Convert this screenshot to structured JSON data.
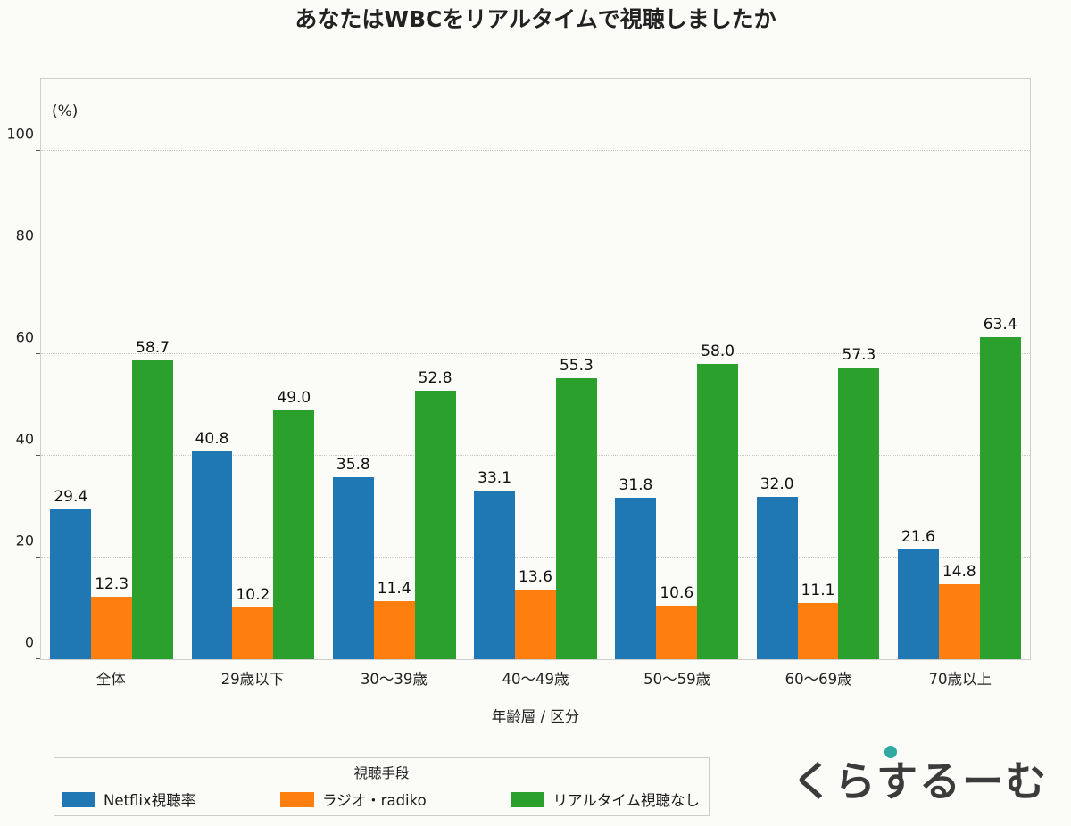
{
  "title": "あなたはWBCをリアルタイムで視聴しましたか",
  "chart_data": {
    "type": "bar",
    "categories": [
      "全体",
      "29歳以下",
      "30〜39歳",
      "40〜49歳",
      "50〜59歳",
      "60〜69歳",
      "70歳以上"
    ],
    "series": [
      {
        "name": "Netflix視聴率",
        "color": "#1f77b4",
        "values": [
          29.4,
          40.8,
          35.8,
          33.1,
          31.8,
          32.0,
          21.6
        ]
      },
      {
        "name": "ラジオ・radiko",
        "color": "#ff7f0e",
        "values": [
          12.3,
          10.2,
          11.4,
          13.6,
          10.6,
          11.1,
          14.8
        ]
      },
      {
        "name": "リアルタイム視聴なし",
        "color": "#2ca02c",
        "values": [
          58.7,
          49.0,
          52.8,
          55.3,
          58.0,
          57.3,
          63.4
        ]
      }
    ],
    "ylabel": "(%)",
    "xlabel": "年齢層 / 区分",
    "yticks": [
      0,
      20,
      40,
      60,
      80,
      100
    ],
    "ylim": [
      0,
      114
    ],
    "legend_title": "視聴手段",
    "grid": true,
    "legend_position": "bottom-left"
  },
  "watermark": "くらするーむ"
}
